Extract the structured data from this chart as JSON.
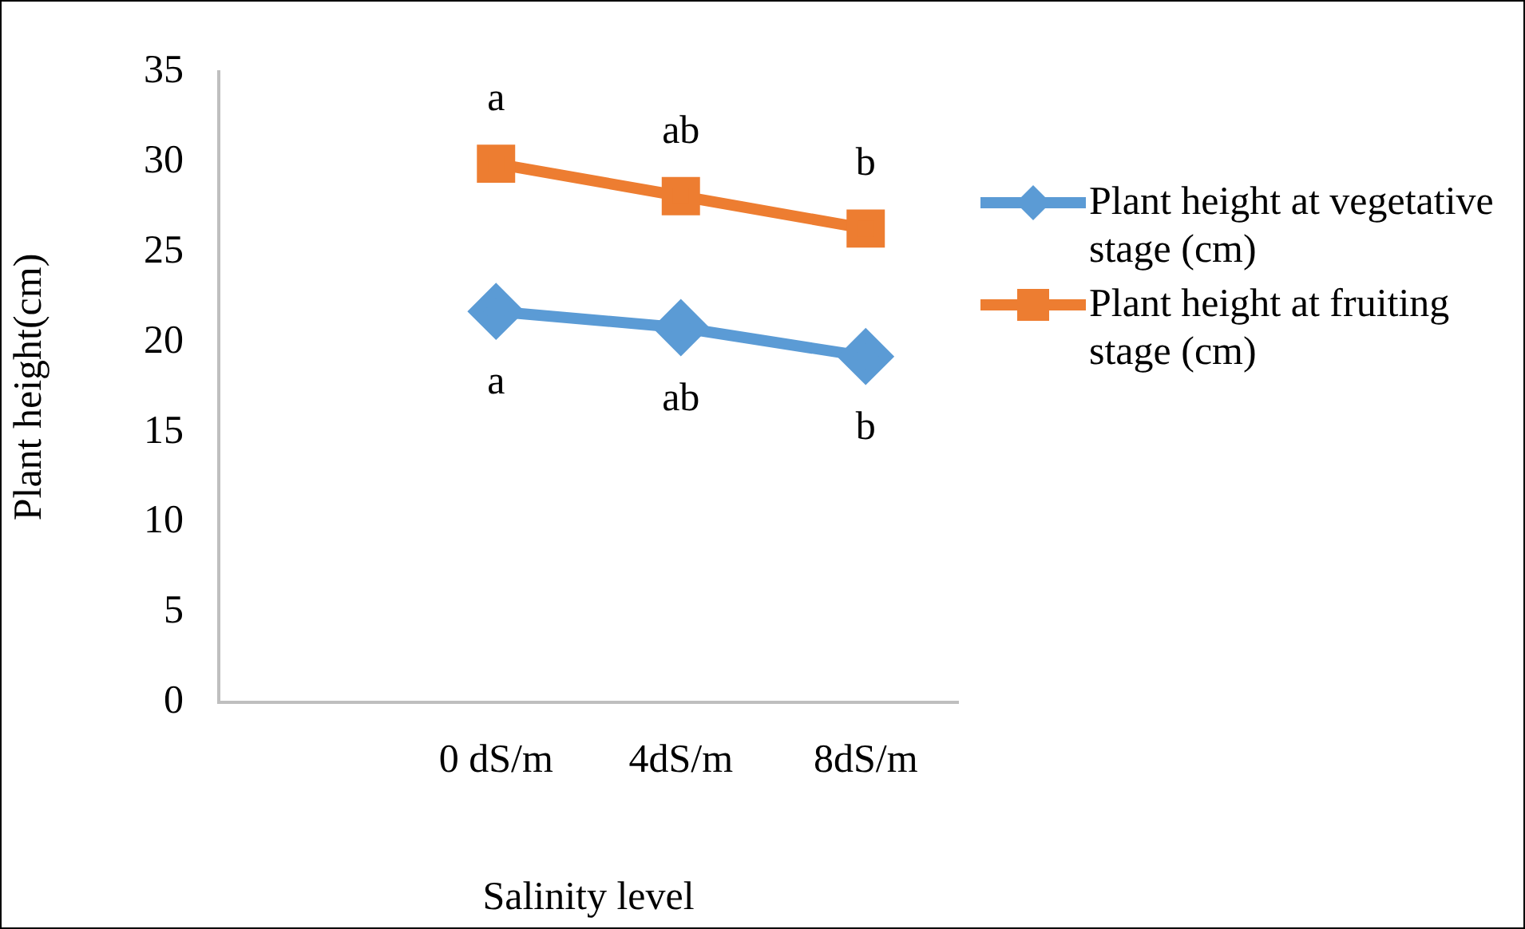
{
  "chart_data": {
    "type": "line",
    "xlabel": "Salinity level",
    "ylabel": "Plant height(cm)",
    "categories": [
      null,
      "0 dS/m",
      "4dS/m",
      "8dS/m"
    ],
    "series": [
      {
        "name": "Plant height at vegetative stage (cm)",
        "color": "#5b9bd5",
        "marker": "diamond",
        "values": [
          null,
          21.7,
          20.8,
          19.2
        ]
      },
      {
        "name": "Plant height at fruiting stage (cm)",
        "color": "#ed7d31",
        "marker": "square",
        "values": [
          null,
          29.9,
          28.1,
          26.3
        ]
      }
    ],
    "ylim": [
      0,
      35
    ],
    "yticks": [
      0,
      5,
      10,
      15,
      20,
      25,
      30,
      35
    ],
    "grid": false,
    "legend": "right",
    "line_style": "solid",
    "annotations": [
      {
        "text": "a",
        "x": "0 dS/m",
        "y": 29.9
      },
      {
        "text": "ab",
        "x": "4dS/m",
        "y": 28.1
      },
      {
        "text": "b",
        "x": "8dS/m",
        "y": 26.3
      },
      {
        "text": "a",
        "x": "0 dS/m",
        "y": 21.7
      },
      {
        "text": "ab",
        "x": "4dS/m",
        "y": 20.8
      },
      {
        "text": "b",
        "x": "8dS/m",
        "y": 19.2
      }
    ]
  }
}
